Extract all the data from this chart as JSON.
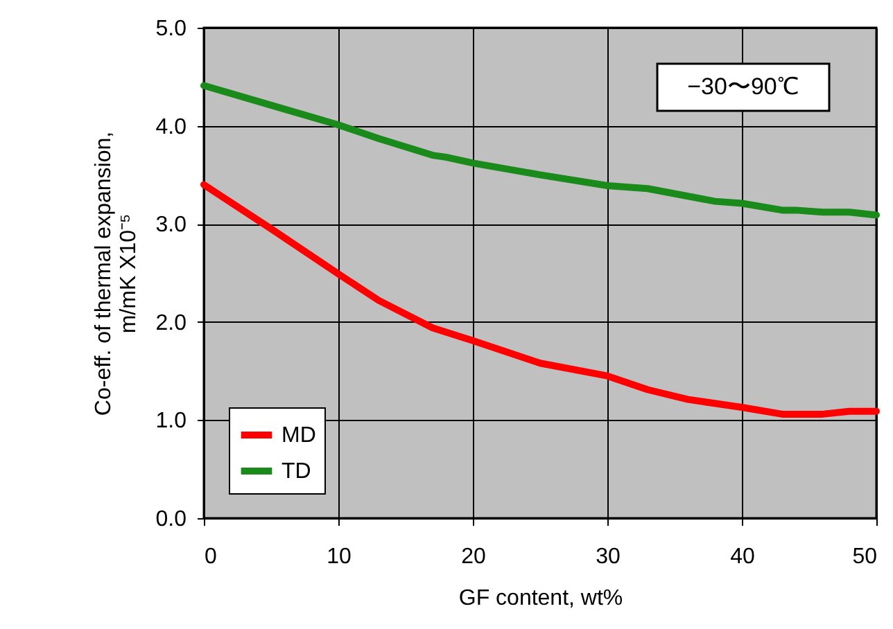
{
  "chart_data": {
    "type": "line",
    "xlabel": "GF content, wt%",
    "ylabel": "Co-eff. of thermal expansion,\nm/mK X10⁻⁵",
    "annotations": [
      "−30〜90℃"
    ],
    "series": [
      {
        "name": "MD",
        "color": "#ff0000",
        "x": [
          0,
          5,
          10,
          13,
          17,
          20,
          25,
          30,
          33,
          36,
          40,
          43,
          46,
          48,
          50
        ],
        "values": [
          3.4,
          2.95,
          2.49,
          2.22,
          1.94,
          1.81,
          1.58,
          1.45,
          1.31,
          1.21,
          1.13,
          1.06,
          1.06,
          1.09,
          1.09
        ]
      },
      {
        "name": "TD",
        "color": "#1a8a1a",
        "x": [
          0,
          5,
          10,
          13,
          17,
          18,
          20,
          25,
          30,
          33,
          38,
          40,
          43,
          44,
          46,
          48,
          50
        ],
        "values": [
          4.41,
          4.21,
          4.01,
          3.87,
          3.7,
          3.68,
          3.62,
          3.5,
          3.39,
          3.36,
          3.23,
          3.21,
          3.14,
          3.14,
          3.12,
          3.12,
          3.09
        ]
      }
    ],
    "xlim": [
      0,
      50
    ],
    "xticks": [
      0,
      10,
      20,
      30,
      40,
      50
    ],
    "ylim": [
      0,
      5
    ],
    "yticks": [
      {
        "value": 0,
        "label": "0.0"
      },
      {
        "value": 1,
        "label": "1.0"
      },
      {
        "value": 2,
        "label": "2.0"
      },
      {
        "value": 3,
        "label": "3.0"
      },
      {
        "value": 4,
        "label": "4.0"
      },
      {
        "value": 5,
        "label": "5.0"
      }
    ],
    "grid": true,
    "legend": "bottom left",
    "line_style": "solid",
    "marker": "none"
  }
}
